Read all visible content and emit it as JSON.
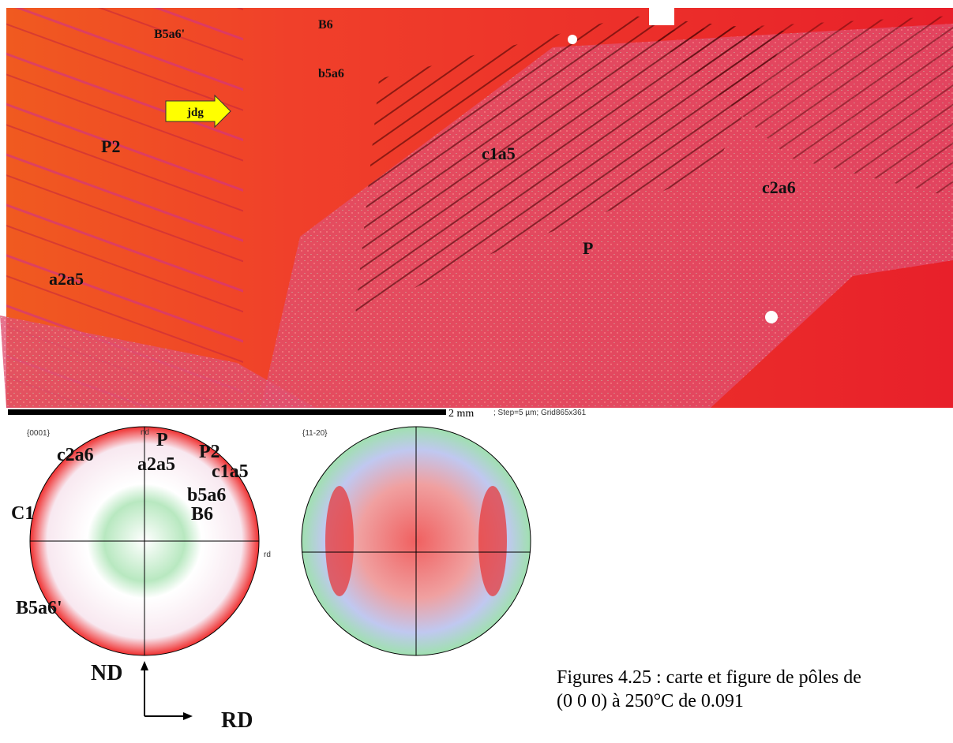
{
  "map": {
    "labels": [
      "B5a6'",
      "B6",
      "b5a6",
      "P2",
      "c1a5",
      "c2a6",
      "P",
      "a2a5"
    ],
    "arrow_label": "jdg",
    "scale_text": "2 mm",
    "step_text": "; Step=5 µm; Grid865x361"
  },
  "pole_figures": [
    {
      "title": "{0001}",
      "nd": "nd",
      "rd": "rd",
      "labels": [
        "P",
        "c2a6",
        "P2",
        "a2a5",
        "c1a5",
        "b5a6",
        "C1",
        "B6",
        "B5a6'"
      ]
    },
    {
      "title": "{11-20}"
    }
  ],
  "axes": {
    "nd": "ND",
    "rd": "RD"
  },
  "caption": [
    "Figures 4.25 : carte et figure de pôles de",
    "(0 0 0) à 250°C de 0.091"
  ]
}
